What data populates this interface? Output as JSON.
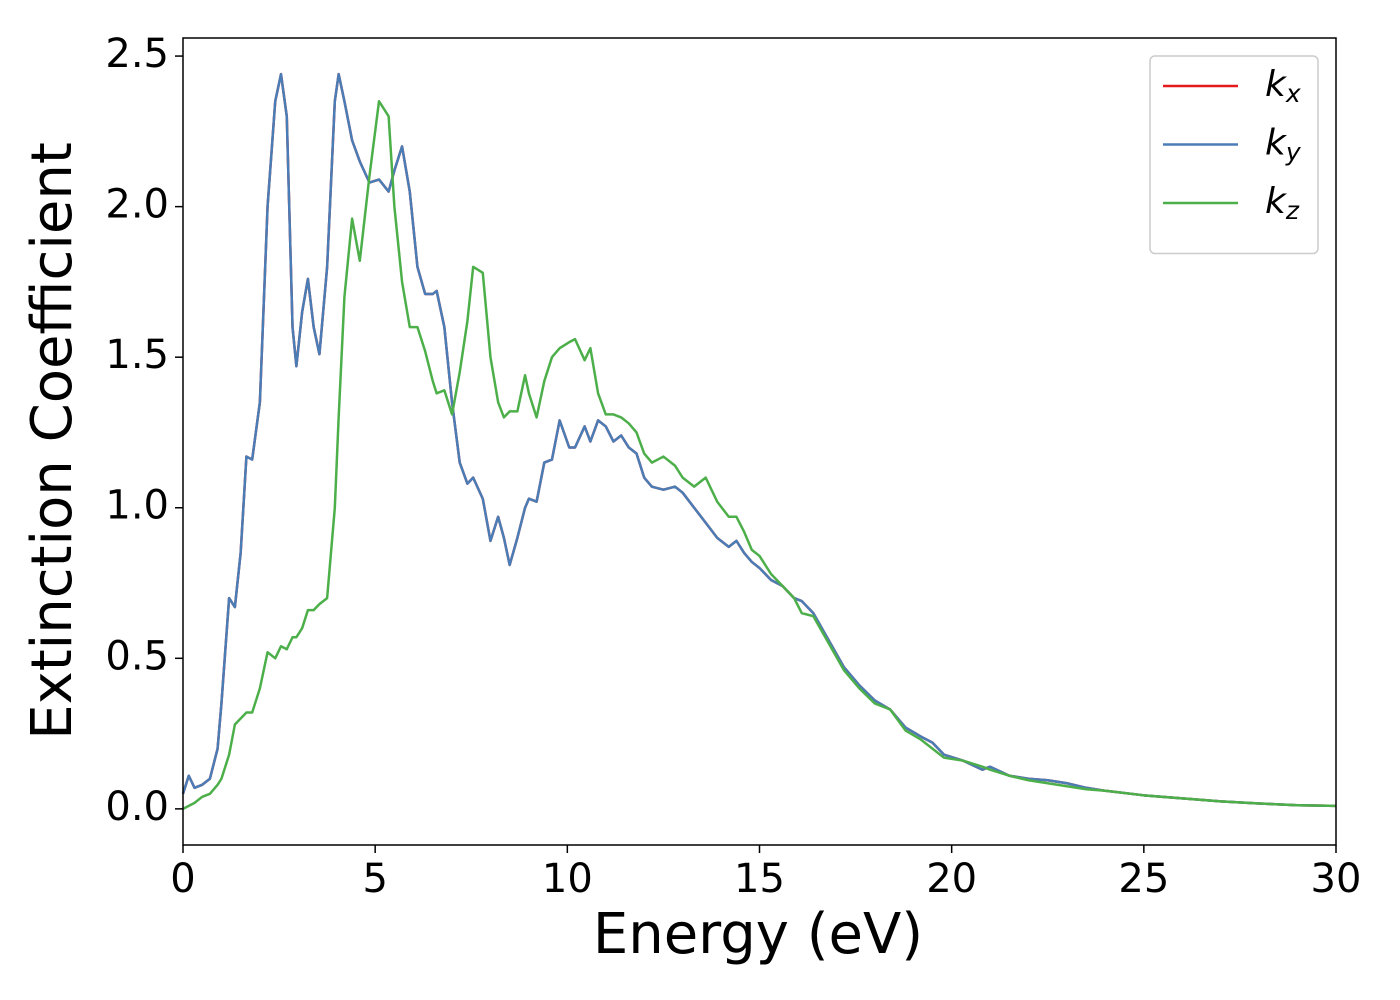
{
  "chart_data": {
    "type": "line",
    "xlabel": "Energy (eV)",
    "ylabel": "Extinction Coefficient",
    "xlim": [
      0,
      30
    ],
    "ylim": [
      -0.12,
      2.56
    ],
    "xticks": [
      0,
      5,
      10,
      15,
      20,
      25,
      30
    ],
    "yticks": [
      {
        "value": 0,
        "label": "0.0"
      },
      0.5,
      {
        "value": 1,
        "label": "1.0"
      },
      1.5,
      {
        "value": 2,
        "label": "2.0"
      },
      2.5
    ],
    "legend": "upper right",
    "x": [
      0,
      0.15,
      0.3,
      0.5,
      0.7,
      0.9,
      1.0,
      1.2,
      1.35,
      1.5,
      1.65,
      1.8,
      2.0,
      2.2,
      2.4,
      2.55,
      2.7,
      2.85,
      2.95,
      3.1,
      3.25,
      3.4,
      3.55,
      3.75,
      3.95,
      4.05,
      4.2,
      4.4,
      4.6,
      4.85,
      5.1,
      5.35,
      5.5,
      5.7,
      5.9,
      6.1,
      6.3,
      6.5,
      6.6,
      6.8,
      7.0,
      7.2,
      7.4,
      7.55,
      7.8,
      8.0,
      8.2,
      8.35,
      8.5,
      8.7,
      8.9,
      9.0,
      9.2,
      9.4,
      9.6,
      9.8,
      10.05,
      10.2,
      10.45,
      10.6,
      10.8,
      11.0,
      11.2,
      11.4,
      11.6,
      11.8,
      12.0,
      12.2,
      12.5,
      12.8,
      13.0,
      13.3,
      13.6,
      13.9,
      14.2,
      14.4,
      14.6,
      14.8,
      15.0,
      15.3,
      15.6,
      15.9,
      16.1,
      16.4,
      16.8,
      17.2,
      17.6,
      18.0,
      18.4,
      18.8,
      19.2,
      19.5,
      19.8,
      20.3,
      20.8,
      21.0,
      21.5,
      22.0,
      22.5,
      23.0,
      23.5,
      24,
      25,
      26,
      27,
      28,
      29,
      30
    ],
    "series": [
      {
        "name": "kx",
        "color": "#e41a1c",
        "values": [
          0.05,
          0.11,
          0.07,
          0.08,
          0.1,
          0.2,
          0.35,
          0.7,
          0.67,
          0.85,
          1.17,
          1.16,
          1.35,
          2.0,
          2.35,
          2.44,
          2.3,
          1.6,
          1.47,
          1.65,
          1.76,
          1.6,
          1.51,
          1.8,
          2.35,
          2.44,
          2.35,
          2.22,
          2.15,
          2.08,
          2.09,
          2.05,
          2.12,
          2.2,
          2.05,
          1.8,
          1.71,
          1.71,
          1.72,
          1.6,
          1.35,
          1.15,
          1.08,
          1.1,
          1.03,
          0.89,
          0.97,
          0.9,
          0.81,
          0.9,
          1.0,
          1.03,
          1.02,
          1.15,
          1.16,
          1.29,
          1.2,
          1.2,
          1.27,
          1.22,
          1.29,
          1.27,
          1.22,
          1.24,
          1.2,
          1.18,
          1.1,
          1.07,
          1.06,
          1.07,
          1.05,
          1.0,
          0.95,
          0.9,
          0.87,
          0.89,
          0.85,
          0.82,
          0.8,
          0.76,
          0.74,
          0.7,
          0.69,
          0.65,
          0.56,
          0.47,
          0.41,
          0.36,
          0.33,
          0.27,
          0.24,
          0.22,
          0.18,
          0.16,
          0.13,
          0.14,
          0.11,
          0.1,
          0.095,
          0.085,
          0.07,
          0.06,
          0.045,
          0.035,
          0.025,
          0.018,
          0.012,
          0.01
        ]
      },
      {
        "name": "ky",
        "color": "#4a7db5",
        "values": [
          0.05,
          0.11,
          0.07,
          0.08,
          0.1,
          0.2,
          0.35,
          0.7,
          0.67,
          0.85,
          1.17,
          1.16,
          1.35,
          2.0,
          2.35,
          2.44,
          2.3,
          1.6,
          1.47,
          1.65,
          1.76,
          1.6,
          1.51,
          1.8,
          2.35,
          2.44,
          2.35,
          2.22,
          2.15,
          2.08,
          2.09,
          2.05,
          2.12,
          2.2,
          2.05,
          1.8,
          1.71,
          1.71,
          1.72,
          1.6,
          1.35,
          1.15,
          1.08,
          1.1,
          1.03,
          0.89,
          0.97,
          0.9,
          0.81,
          0.9,
          1.0,
          1.03,
          1.02,
          1.15,
          1.16,
          1.29,
          1.2,
          1.2,
          1.27,
          1.22,
          1.29,
          1.27,
          1.22,
          1.24,
          1.2,
          1.18,
          1.1,
          1.07,
          1.06,
          1.07,
          1.05,
          1.0,
          0.95,
          0.9,
          0.87,
          0.89,
          0.85,
          0.82,
          0.8,
          0.76,
          0.74,
          0.7,
          0.69,
          0.65,
          0.56,
          0.47,
          0.41,
          0.36,
          0.33,
          0.27,
          0.24,
          0.22,
          0.18,
          0.16,
          0.13,
          0.14,
          0.11,
          0.1,
          0.095,
          0.085,
          0.07,
          0.06,
          0.045,
          0.035,
          0.025,
          0.018,
          0.012,
          0.01
        ]
      },
      {
        "name": "kz",
        "color": "#4daf4a",
        "values": [
          0.0,
          0.01,
          0.02,
          0.04,
          0.05,
          0.08,
          0.1,
          0.18,
          0.28,
          0.3,
          0.32,
          0.32,
          0.4,
          0.52,
          0.5,
          0.54,
          0.53,
          0.57,
          0.57,
          0.6,
          0.66,
          0.66,
          0.68,
          0.7,
          1.0,
          1.3,
          1.7,
          1.96,
          1.82,
          2.1,
          2.35,
          2.3,
          2.0,
          1.75,
          1.6,
          1.6,
          1.52,
          1.42,
          1.38,
          1.39,
          1.31,
          1.45,
          1.62,
          1.8,
          1.78,
          1.5,
          1.35,
          1.3,
          1.32,
          1.32,
          1.44,
          1.38,
          1.3,
          1.42,
          1.5,
          1.53,
          1.55,
          1.56,
          1.49,
          1.53,
          1.38,
          1.31,
          1.31,
          1.3,
          1.28,
          1.25,
          1.18,
          1.15,
          1.17,
          1.14,
          1.1,
          1.07,
          1.1,
          1.02,
          0.97,
          0.97,
          0.92,
          0.86,
          0.84,
          0.78,
          0.74,
          0.7,
          0.65,
          0.64,
          0.55,
          0.46,
          0.4,
          0.35,
          0.33,
          0.26,
          0.23,
          0.2,
          0.17,
          0.16,
          0.14,
          0.13,
          0.11,
          0.095,
          0.085,
          0.075,
          0.065,
          0.06,
          0.045,
          0.035,
          0.025,
          0.018,
          0.012,
          0.01
        ]
      }
    ]
  }
}
